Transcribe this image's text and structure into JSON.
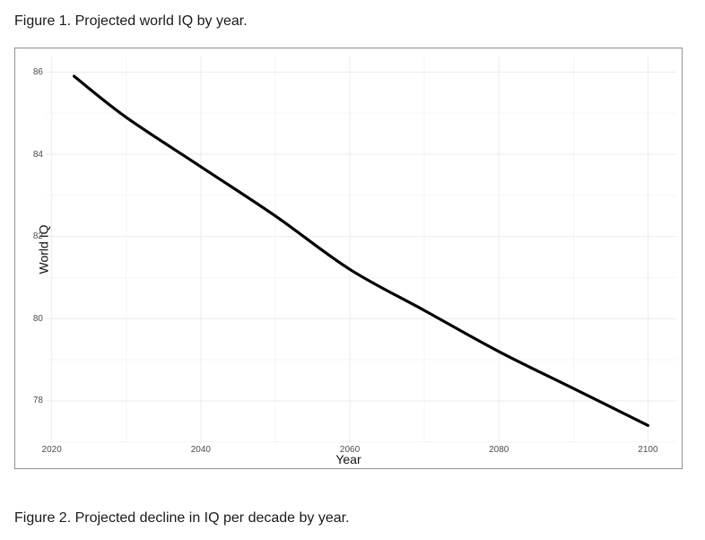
{
  "figure1": {
    "caption": "Figure 1. Projected world IQ by year."
  },
  "figure2": {
    "caption": "Figure 2. Projected decline in IQ per decade by year."
  },
  "chart_data": {
    "type": "line",
    "title": "",
    "xlabel": "Year",
    "ylabel": "World IQ",
    "x_ticks": [
      2020,
      2040,
      2060,
      2080,
      2100
    ],
    "x_minor_ticks": [
      2030,
      2050,
      2070,
      2090
    ],
    "y_ticks": [
      78,
      80,
      82,
      84,
      86
    ],
    "y_minor_ticks": [
      77,
      79,
      81,
      83,
      85
    ],
    "xlim": [
      2019.2,
      2103.8
    ],
    "ylim": [
      76.97,
      86.38
    ],
    "grid": "major+minor",
    "legend": "none",
    "series": [
      {
        "name": "Projected world IQ",
        "color": "#000000",
        "x": [
          2023,
          2030,
          2040,
          2050,
          2060,
          2070,
          2080,
          2090,
          2100
        ],
        "y": [
          85.9,
          84.9,
          83.7,
          82.5,
          81.2,
          80.2,
          79.2,
          78.3,
          77.4
        ]
      }
    ]
  },
  "style": {
    "grid_major_color": "#ececec",
    "grid_minor_color": "#f5f5f5",
    "line_color": "#000000",
    "tick_label_color": "#4d4d4d",
    "border_color": "#919191"
  }
}
